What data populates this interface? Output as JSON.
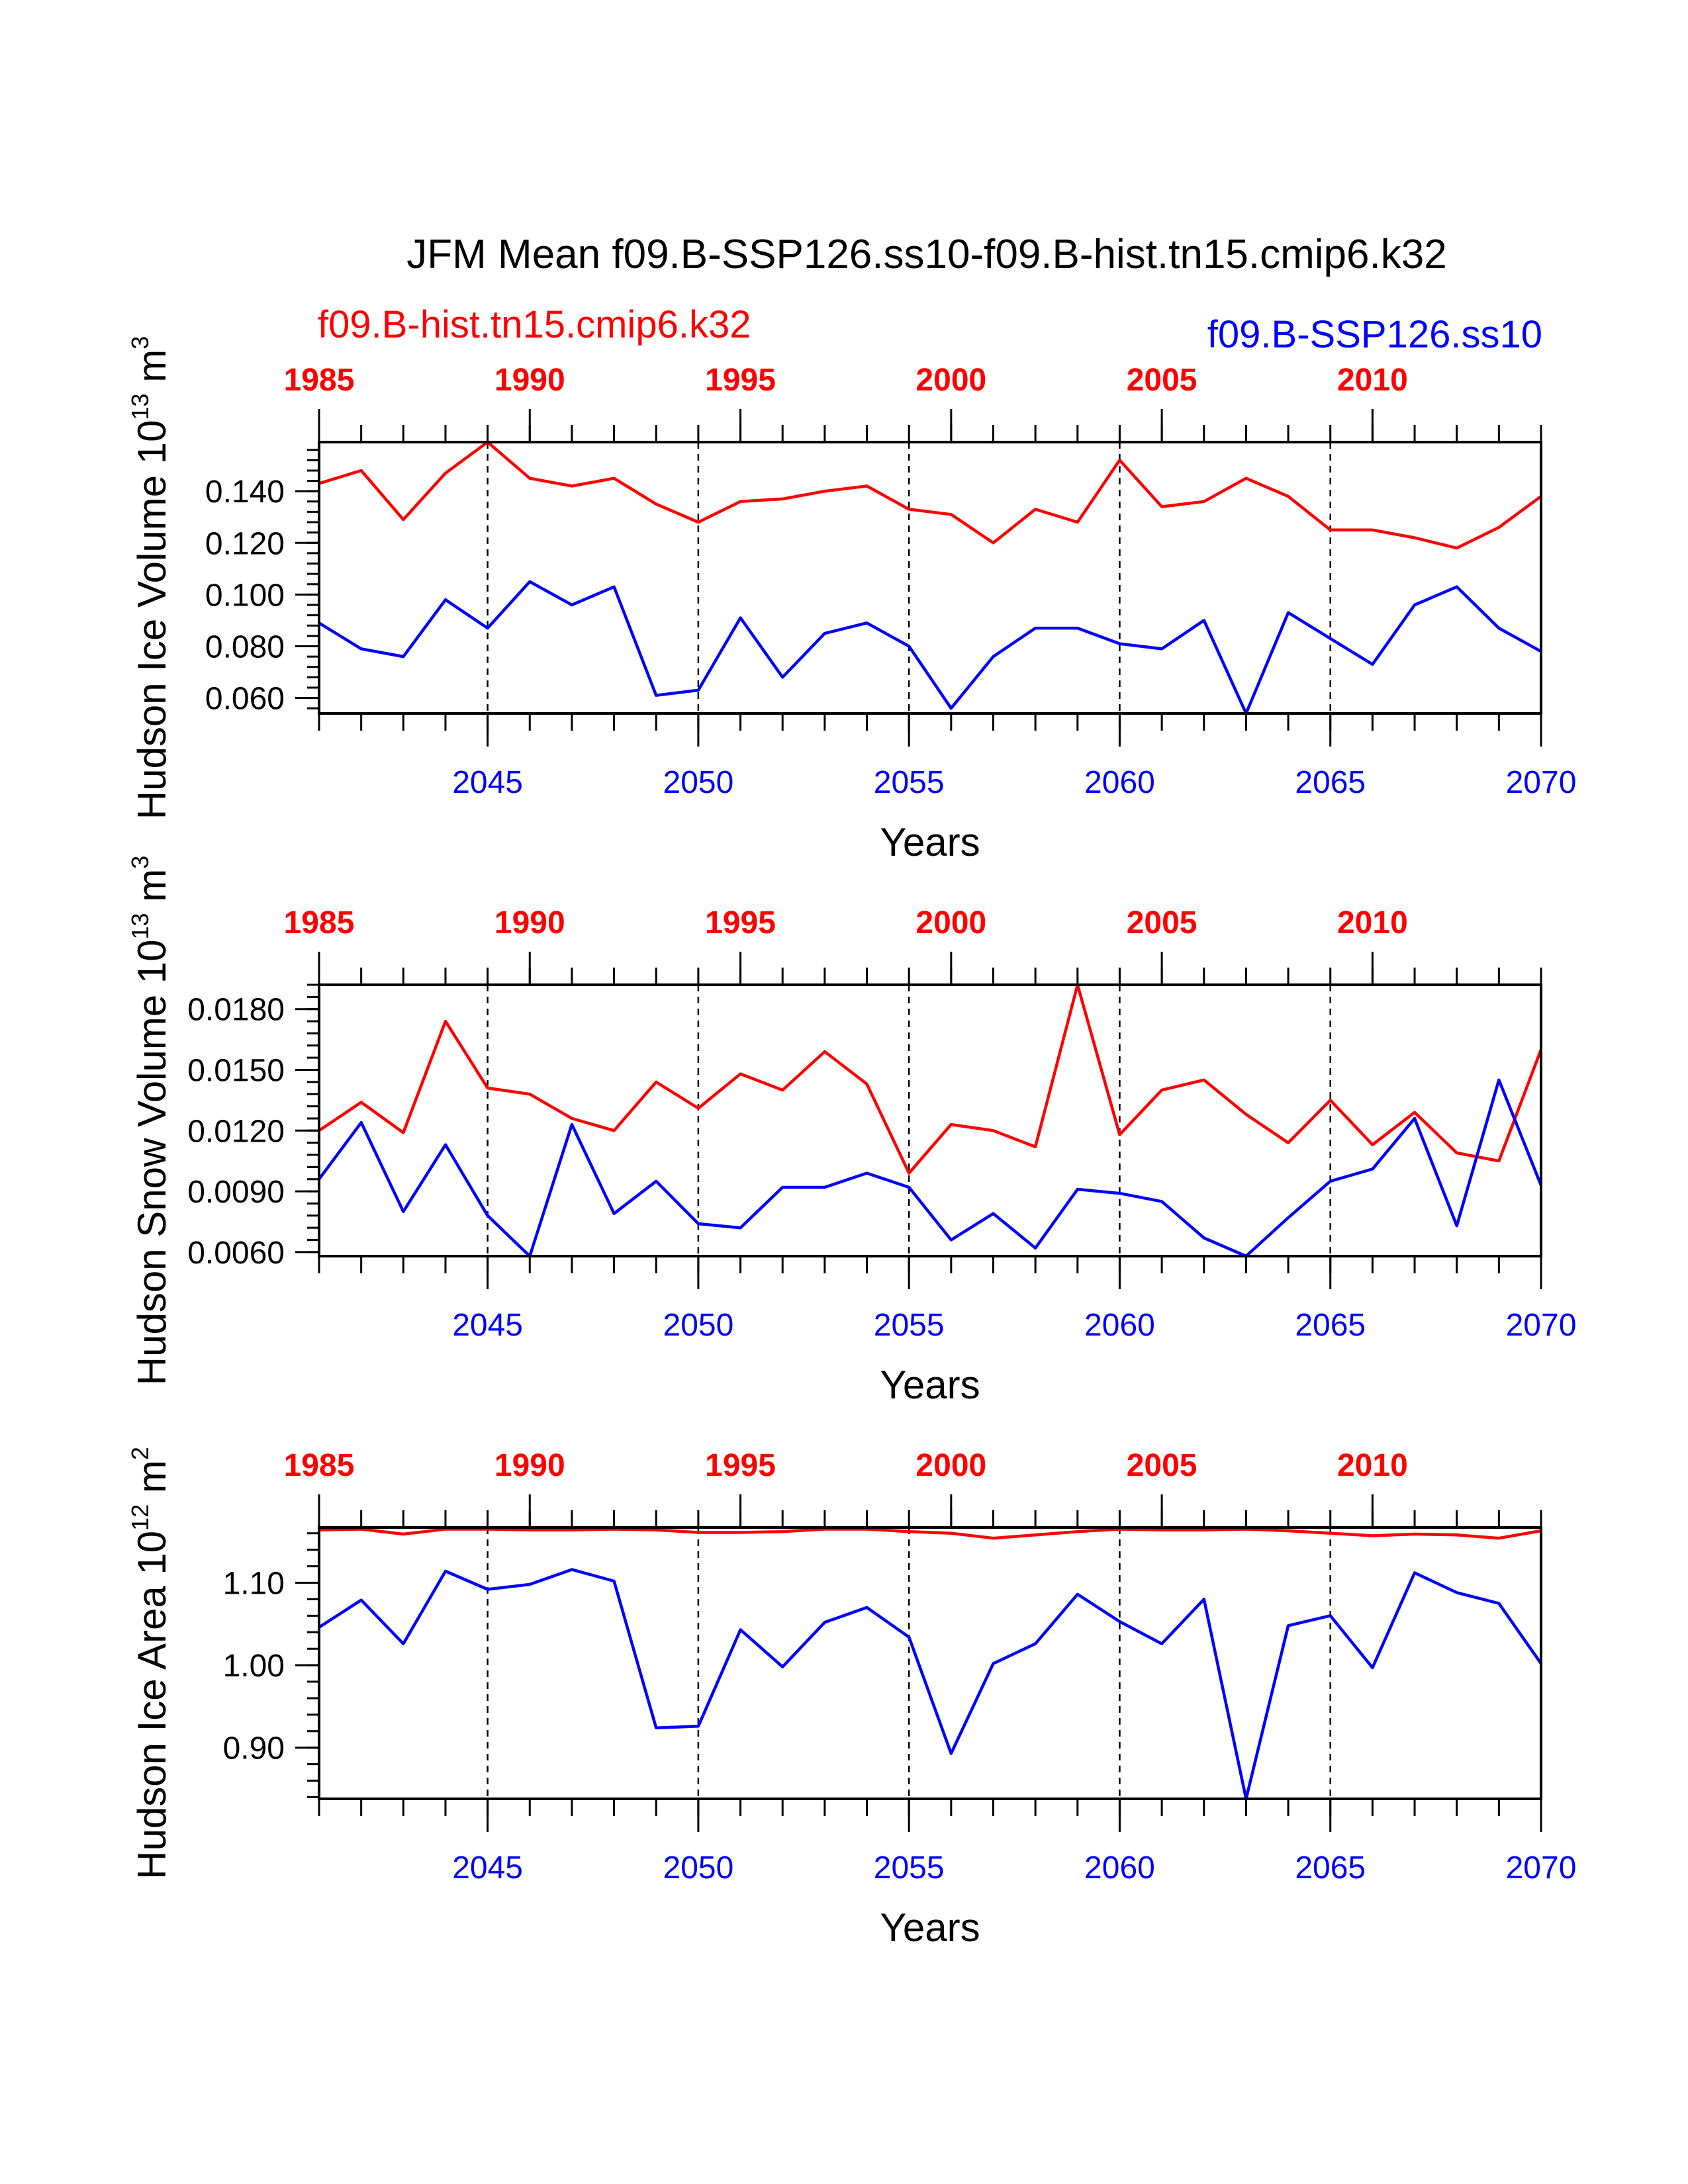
{
  "title": "JFM Mean f09.B-SSP126.ss10-f09.B-hist.tn15.cmip6.k32",
  "legend": {
    "hist_label": "f09.B-hist.tn15.cmip6.k32",
    "ssp_label": "f09.B-SSP126.ss10"
  },
  "colors": {
    "hist": "#ff0000",
    "ssp": "#0000ff",
    "axis": "#000000"
  },
  "chart_data": [
    {
      "type": "line",
      "ylabel_main": "Hudson Ice Volume 10",
      "ylabel_exp": "13",
      "ylabel_unit": " m",
      "ylabel_unit_exp": "3",
      "xlabel": "Years",
      "x": [
        2041,
        2042,
        2043,
        2044,
        2045,
        2046,
        2047,
        2048,
        2049,
        2050,
        2051,
        2052,
        2053,
        2054,
        2055,
        2056,
        2057,
        2058,
        2059,
        2060,
        2061,
        2062,
        2063,
        2064,
        2065,
        2066,
        2067,
        2068,
        2069,
        2070
      ],
      "xlim": [
        2041,
        2070
      ],
      "ylim": [
        0.054,
        0.159
      ],
      "yticks": [
        "0.060",
        "0.080",
        "0.100",
        "0.120",
        "0.140"
      ],
      "bottom_ticks": [
        "2045",
        "2050",
        "2055",
        "2060",
        "2065",
        "2070"
      ],
      "top_ticks": [
        "1985",
        "1990",
        "1995",
        "2000",
        "2005",
        "2010"
      ],
      "series": [
        {
          "name": "f09.B-hist.tn15.cmip6.k32",
          "values": [
            0.143,
            0.148,
            0.129,
            0.147,
            0.159,
            0.145,
            0.142,
            0.145,
            0.135,
            0.128,
            0.136,
            0.137,
            0.14,
            0.142,
            0.133,
            0.131,
            0.12,
            0.133,
            0.128,
            0.152,
            0.134,
            0.136,
            0.145,
            0.138,
            0.125,
            0.125,
            0.122,
            0.118,
            0.126,
            0.138
          ]
        },
        {
          "name": "f09.B-SSP126.ss10",
          "values": [
            0.089,
            0.079,
            0.076,
            0.098,
            0.087,
            0.105,
            0.096,
            0.103,
            0.061,
            0.063,
            0.091,
            0.068,
            0.085,
            0.089,
            0.08,
            0.056,
            0.076,
            0.087,
            0.087,
            0.081,
            0.079,
            0.09,
            0.054,
            0.093,
            0.083,
            0.073,
            0.096,
            0.103,
            0.087,
            0.078
          ]
        }
      ]
    },
    {
      "type": "line",
      "ylabel_main": "Hudson Snow Volume 10",
      "ylabel_exp": "13",
      "ylabel_unit": " m",
      "ylabel_unit_exp": "3",
      "xlabel": "Years",
      "x": [
        2041,
        2042,
        2043,
        2044,
        2045,
        2046,
        2047,
        2048,
        2049,
        2050,
        2051,
        2052,
        2053,
        2054,
        2055,
        2056,
        2057,
        2058,
        2059,
        2060,
        2061,
        2062,
        2063,
        2064,
        2065,
        2066,
        2067,
        2068,
        2069,
        2070
      ],
      "xlim": [
        2041,
        2070
      ],
      "ylim": [
        0.0058,
        0.0192
      ],
      "yticks": [
        "0.0060",
        "0.0090",
        "0.0120",
        "0.0150",
        "0.0180"
      ],
      "bottom_ticks": [
        "2045",
        "2050",
        "2055",
        "2060",
        "2065",
        "2070"
      ],
      "top_ticks": [
        "1985",
        "1990",
        "1995",
        "2000",
        "2005",
        "2010"
      ],
      "series": [
        {
          "name": "f09.B-hist.tn15.cmip6.k32",
          "values": [
            0.012,
            0.0134,
            0.0119,
            0.0174,
            0.0141,
            0.0138,
            0.0126,
            0.012,
            0.0144,
            0.0131,
            0.0148,
            0.014,
            0.0159,
            0.0143,
            0.0099,
            0.0123,
            0.012,
            0.0112,
            0.0192,
            0.0118,
            0.014,
            0.0145,
            0.0128,
            0.0114,
            0.0135,
            0.0113,
            0.0129,
            0.0109,
            0.0105,
            0.016
          ]
        },
        {
          "name": "f09.B-SSP126.ss10",
          "values": [
            0.0096,
            0.0124,
            0.008,
            0.0113,
            0.0078,
            0.0058,
            0.0123,
            0.0079,
            0.0095,
            0.0074,
            0.0072,
            0.0092,
            0.0092,
            0.0099,
            0.0092,
            0.0066,
            0.0079,
            0.0062,
            0.0091,
            0.0089,
            0.0085,
            0.0067,
            0.0058,
            0.0077,
            0.0095,
            0.0101,
            0.0126,
            0.0073,
            0.0145,
            0.0093
          ]
        }
      ]
    },
    {
      "type": "line",
      "ylabel_main": "Hudson Ice Area 10",
      "ylabel_exp": "12",
      "ylabel_unit": " m",
      "ylabel_unit_exp": "2",
      "xlabel": "Years",
      "x": [
        2041,
        2042,
        2043,
        2044,
        2045,
        2046,
        2047,
        2048,
        2049,
        2050,
        2051,
        2052,
        2053,
        2054,
        2055,
        2056,
        2057,
        2058,
        2059,
        2060,
        2061,
        2062,
        2063,
        2064,
        2065,
        2066,
        2067,
        2068,
        2069,
        2070
      ],
      "xlim": [
        2041,
        2070
      ],
      "ylim": [
        0.838,
        1.167
      ],
      "yticks": [
        "0.90",
        "1.00",
        "1.10"
      ],
      "bottom_ticks": [
        "2045",
        "2050",
        "2055",
        "2060",
        "2065",
        "2070"
      ],
      "top_ticks": [
        "1985",
        "1990",
        "1995",
        "2000",
        "2005",
        "2010"
      ],
      "series": [
        {
          "name": "f09.B-hist.tn15.cmip6.k32",
          "values": [
            1.164,
            1.165,
            1.159,
            1.165,
            1.165,
            1.164,
            1.164,
            1.165,
            1.164,
            1.161,
            1.161,
            1.162,
            1.165,
            1.165,
            1.162,
            1.16,
            1.154,
            1.158,
            1.162,
            1.165,
            1.164,
            1.164,
            1.165,
            1.163,
            1.16,
            1.157,
            1.159,
            1.158,
            1.154,
            1.163
          ]
        },
        {
          "name": "f09.B-SSP126.ss10",
          "values": [
            1.046,
            1.079,
            1.026,
            1.114,
            1.092,
            1.098,
            1.116,
            1.102,
            0.924,
            0.926,
            1.043,
            0.998,
            1.052,
            1.07,
            1.034,
            0.893,
            1.002,
            1.026,
            1.086,
            1.053,
            1.026,
            1.08,
            0.838,
            1.048,
            1.06,
            0.997,
            1.112,
            1.088,
            1.075,
            1.002
          ]
        }
      ]
    }
  ]
}
